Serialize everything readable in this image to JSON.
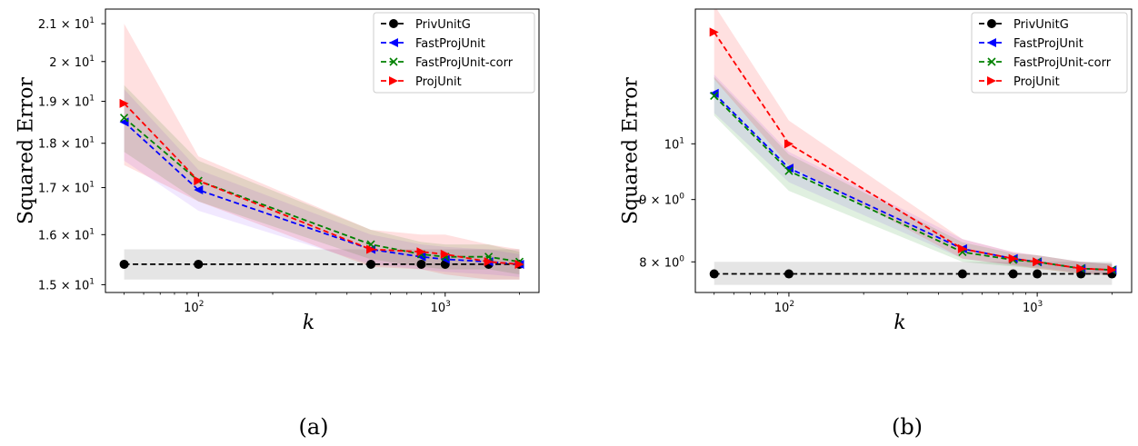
{
  "chart_data": [
    {
      "type": "line",
      "panel": "(a)",
      "xlabel": "k",
      "ylabel": "Squared Error",
      "xscale": "log",
      "yscale": "log",
      "xlim": [
        42,
        2400
      ],
      "ylim": [
        14.85,
        21.4
      ],
      "x_ticks": [
        {
          "value": 100,
          "base": "10",
          "exp": "2"
        },
        {
          "value": 1000,
          "base": "10",
          "exp": "3"
        }
      ],
      "y_ticks": [
        {
          "value": 15,
          "mant": "1.5 × 10",
          "exp": "1"
        },
        {
          "value": 16,
          "mant": "1.6 × 10",
          "exp": "1"
        },
        {
          "value": 17,
          "mant": "1.7 × 10",
          "exp": "1"
        },
        {
          "value": 18,
          "mant": "1.8 × 10",
          "exp": "1"
        },
        {
          "value": 19,
          "mant": "1.9 × 10",
          "exp": "1"
        },
        {
          "value": 20,
          "mant": "2 × 10",
          "exp": "1"
        },
        {
          "value": 21,
          "mant": "2.1 × 10",
          "exp": "1"
        }
      ],
      "legend_position": "top-right",
      "x": [
        50,
        100,
        500,
        800,
        1000,
        1500,
        2000
      ],
      "series": [
        {
          "name": "PrivUnitG",
          "color": "#000000",
          "marker": "circle",
          "values": [
            15.4,
            15.4,
            15.4,
            15.4,
            15.4,
            15.4,
            15.4
          ],
          "lower": [
            15.1,
            15.1,
            15.1,
            15.1,
            15.1,
            15.1,
            15.1
          ],
          "upper": [
            15.7,
            15.7,
            15.7,
            15.7,
            15.7,
            15.7,
            15.7
          ]
        },
        {
          "name": "FastProjUnit",
          "color": "#0000ff",
          "marker": "triangle-left",
          "values": [
            18.5,
            16.95,
            15.7,
            15.55,
            15.5,
            15.45,
            15.4
          ],
          "lower": [
            17.6,
            16.5,
            15.4,
            15.3,
            15.25,
            15.2,
            15.15
          ],
          "upper": [
            19.3,
            17.4,
            16.0,
            15.8,
            15.75,
            15.7,
            15.6
          ]
        },
        {
          "name": "FastProjUnit-corr",
          "color": "#008000",
          "marker": "x",
          "values": [
            18.6,
            17.15,
            15.8,
            15.6,
            15.55,
            15.55,
            15.45
          ],
          "lower": [
            17.8,
            16.7,
            15.5,
            15.35,
            15.3,
            15.3,
            15.2
          ],
          "upper": [
            19.4,
            17.6,
            16.1,
            15.85,
            15.8,
            15.8,
            15.65
          ]
        },
        {
          "name": "ProjUnit",
          "color": "#ff0000",
          "marker": "triangle-right",
          "values": [
            18.95,
            17.15,
            15.7,
            15.65,
            15.6,
            15.45,
            15.4
          ],
          "lower": [
            17.5,
            16.7,
            15.35,
            15.3,
            15.2,
            15.1,
            15.1
          ],
          "upper": [
            21.0,
            17.7,
            16.1,
            16.0,
            16.0,
            15.8,
            15.7
          ]
        }
      ]
    },
    {
      "type": "line",
      "panel": "(b)",
      "xlabel": "k",
      "ylabel": "Squared Error",
      "xscale": "log",
      "yscale": "log",
      "xlim": [
        42,
        2400
      ],
      "ylim": [
        7.55,
        12.9
      ],
      "x_ticks": [
        {
          "value": 100,
          "base": "10",
          "exp": "2"
        },
        {
          "value": 1000,
          "base": "10",
          "exp": "3"
        }
      ],
      "y_ticks": [
        {
          "value": 8,
          "mant": "8 × 10",
          "exp": "0"
        },
        {
          "value": 9,
          "mant": "9 × 10",
          "exp": "0"
        },
        {
          "value": 10,
          "mant": "10",
          "exp": "1"
        }
      ],
      "legend_position": "top-right",
      "x": [
        50,
        100,
        500,
        800,
        1000,
        1500,
        2000
      ],
      "series": [
        {
          "name": "PrivUnitG",
          "color": "#000000",
          "marker": "circle",
          "values": [
            7.82,
            7.82,
            7.82,
            7.82,
            7.82,
            7.82,
            7.82
          ],
          "lower": [
            7.66,
            7.66,
            7.66,
            7.66,
            7.66,
            7.66,
            7.66
          ],
          "upper": [
            8.0,
            8.0,
            8.0,
            8.0,
            8.0,
            8.0,
            8.0
          ]
        },
        {
          "name": "FastProjUnit",
          "color": "#0000ff",
          "marker": "triangle-left",
          "values": [
            11.0,
            9.55,
            8.2,
            8.05,
            8.0,
            7.9,
            7.88
          ],
          "lower": [
            10.6,
            9.3,
            8.05,
            7.95,
            7.92,
            7.83,
            7.8
          ],
          "upper": [
            11.4,
            9.85,
            8.35,
            8.15,
            8.1,
            8.0,
            7.97
          ]
        },
        {
          "name": "FastProjUnit-corr",
          "color": "#008000",
          "marker": "x",
          "values": [
            10.95,
            9.5,
            8.15,
            8.03,
            8.0,
            7.9,
            7.88
          ],
          "lower": [
            10.55,
            9.15,
            8.0,
            7.93,
            7.9,
            7.82,
            7.8
          ],
          "upper": [
            11.35,
            9.8,
            8.3,
            8.13,
            8.1,
            8.0,
            7.97
          ]
        },
        {
          "name": "ProjUnit",
          "color": "#ff0000",
          "marker": "triangle-right",
          "values": [
            12.35,
            10.0,
            8.2,
            8.05,
            8.0,
            7.9,
            7.88
          ],
          "lower": [
            11.3,
            9.6,
            8.05,
            7.95,
            7.9,
            7.82,
            7.8
          ],
          "upper": [
            13.0,
            10.45,
            8.35,
            8.15,
            8.1,
            8.0,
            7.97
          ]
        }
      ]
    }
  ]
}
